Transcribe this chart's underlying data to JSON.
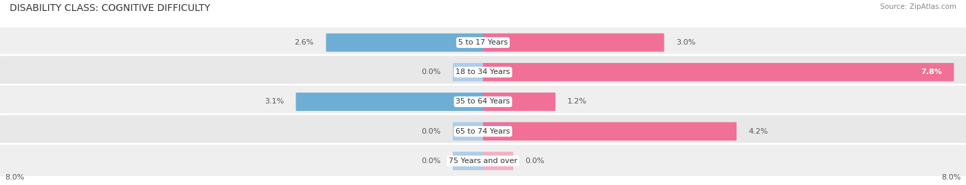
{
  "title": "DISABILITY CLASS: COGNITIVE DIFFICULTY",
  "source": "Source: ZipAtlas.com",
  "categories": [
    "5 to 17 Years",
    "18 to 34 Years",
    "35 to 64 Years",
    "65 to 74 Years",
    "75 Years and over"
  ],
  "male_values": [
    2.6,
    0.0,
    3.1,
    0.0,
    0.0
  ],
  "female_values": [
    3.0,
    7.8,
    1.2,
    4.2,
    0.0
  ],
  "max_scale": 8.0,
  "male_color": "#6faed4",
  "female_color": "#f07098",
  "male_light_color": "#aecde8",
  "female_light_color": "#f5b0c4",
  "row_colors": [
    "#efefef",
    "#e8e8e8",
    "#efefef",
    "#e8e8e8",
    "#efefef"
  ],
  "title_fontsize": 10,
  "label_fontsize": 8,
  "tick_fontsize": 8,
  "source_fontsize": 7.5,
  "background_color": "#ffffff"
}
